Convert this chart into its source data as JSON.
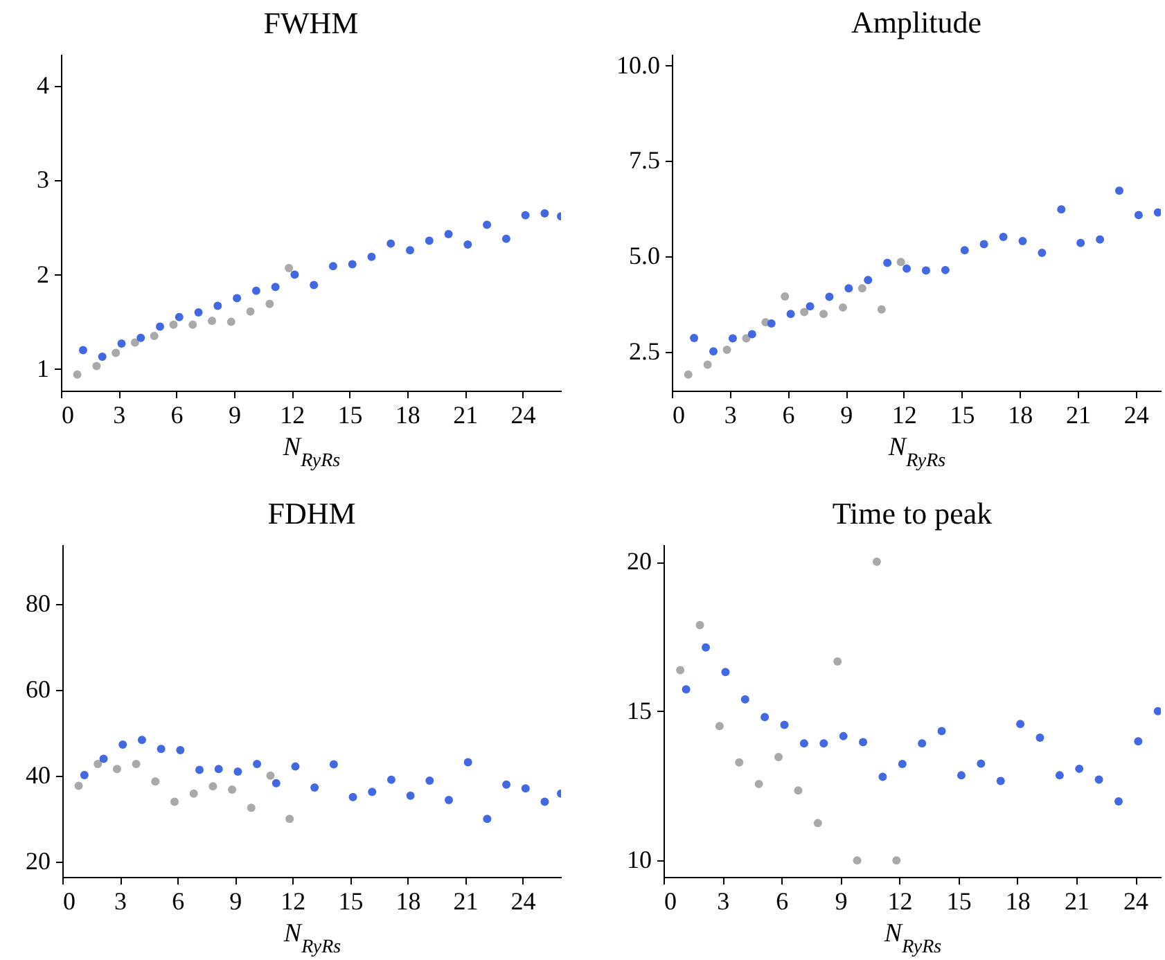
{
  "chart_data": [
    {
      "type": "scatter",
      "title": "FWHM",
      "xlabel": "N$_{RyRs}$",
      "marker": "circle",
      "xlim": [
        0,
        26
      ],
      "xticks": [
        0,
        3,
        6,
        9,
        12,
        15,
        18,
        21,
        24
      ],
      "ylim": [
        0.77,
        4.34
      ],
      "yticks": [
        1,
        2,
        3,
        4
      ],
      "series": [
        {
          "color": "#a9a9a9",
          "x": [
            0.85,
            1.85,
            2.85,
            3.85,
            4.85,
            5.85,
            6.85,
            7.85,
            8.85,
            9.85,
            10.85,
            11.85
          ],
          "values": [
            0.94,
            1.03,
            1.17,
            1.28,
            1.35,
            1.47,
            1.47,
            1.51,
            1.5,
            1.61,
            1.69,
            2.07
          ]
        },
        {
          "color": "#4169e1",
          "x": [
            1.15,
            2.15,
            3.15,
            4.15,
            5.15,
            6.15,
            7.15,
            8.15,
            9.15,
            10.15,
            11.15,
            12.15,
            13.15,
            14.15,
            15.15,
            16.15,
            17.15,
            18.15,
            19.15,
            20.15,
            21.15,
            22.15,
            23.15,
            24.15,
            25.15,
            26
          ],
          "values": [
            1.2,
            1.13,
            1.27,
            1.33,
            1.45,
            1.55,
            1.6,
            1.67,
            1.75,
            1.83,
            1.87,
            2.0,
            1.89,
            2.09,
            2.11,
            2.19,
            2.33,
            2.26,
            2.36,
            2.43,
            2.32,
            2.53,
            2.38,
            2.63,
            2.65,
            2.62
          ]
        }
      ]
    },
    {
      "type": "scatter",
      "title": "Amplitude",
      "xlabel": "N$_{RyRs}$",
      "marker": "circle",
      "xlim": [
        0,
        25.3
      ],
      "xticks": [
        0,
        3,
        6,
        9,
        12,
        15,
        18,
        21,
        24
      ],
      "ylim": [
        1.48,
        10.3
      ],
      "yticks": [
        2.5,
        {
          "value": 5,
          "label": "5.0"
        },
        7.5,
        {
          "value": 10,
          "label": "10.0"
        }
      ],
      "series": [
        {
          "color": "#a9a9a9",
          "x": [
            0.85,
            1.85,
            2.85,
            3.85,
            4.85,
            5.85,
            6.85,
            7.85,
            8.85,
            9.85,
            10.85,
            11.85
          ],
          "values": [
            1.9,
            2.16,
            2.55,
            2.85,
            3.27,
            3.95,
            3.54,
            3.49,
            3.66,
            4.16,
            3.61,
            4.85
          ]
        },
        {
          "color": "#4169e1",
          "x": [
            1.15,
            2.15,
            3.15,
            4.15,
            5.15,
            6.15,
            7.15,
            8.15,
            9.15,
            10.15,
            11.15,
            12.15,
            13.15,
            14.15,
            15.15,
            16.15,
            17.15,
            18.15,
            19.15,
            20.15,
            21.15,
            22.15,
            23.15,
            24.15,
            25.15
          ],
          "values": [
            2.86,
            2.51,
            2.85,
            2.96,
            3.24,
            3.49,
            3.69,
            3.94,
            4.16,
            4.38,
            4.83,
            4.68,
            4.63,
            4.64,
            5.16,
            5.32,
            5.51,
            5.4,
            5.09,
            6.23,
            5.35,
            5.44,
            6.72,
            6.08,
            6.15
          ]
        }
      ]
    },
    {
      "type": "scatter",
      "title": "FDHM",
      "xlabel": "N$_{RyRs}$",
      "marker": "circle",
      "xlim": [
        0,
        26
      ],
      "xticks": [
        0,
        3,
        6,
        9,
        12,
        15,
        18,
        21,
        24
      ],
      "ylim": [
        16.4,
        93.8
      ],
      "yticks": [
        20,
        40,
        60,
        80
      ],
      "series": [
        {
          "color": "#a9a9a9",
          "x": [
            0.85,
            1.85,
            2.85,
            3.85,
            4.85,
            5.85,
            6.85,
            7.85,
            8.85,
            9.85,
            10.85,
            11.85
          ],
          "values": [
            37.6,
            42.7,
            41.5,
            42.7,
            38.6,
            33.9,
            35.8,
            37.5,
            36.7,
            32.5,
            40.0,
            29.9
          ]
        },
        {
          "color": "#4169e1",
          "x": [
            1.15,
            2.15,
            3.15,
            4.15,
            5.15,
            6.15,
            7.15,
            8.15,
            9.15,
            10.15,
            11.15,
            12.15,
            13.15,
            14.15,
            15.15,
            16.15,
            17.15,
            18.15,
            19.15,
            20.15,
            21.15,
            22.15,
            23.15,
            24.15,
            25.15,
            26
          ],
          "values": [
            40.1,
            43.9,
            47.2,
            48.3,
            46.2,
            45.9,
            41.3,
            41.5,
            40.9,
            42.7,
            38.2,
            42.1,
            37.2,
            42.6,
            35.0,
            36.2,
            39.0,
            35.3,
            38.8,
            34.3,
            43.1,
            29.9,
            37.9,
            37.0,
            33.9,
            35.8
          ]
        }
      ]
    },
    {
      "type": "scatter",
      "title": "Time to peak",
      "xlabel": "N$_{RyRs}$",
      "marker": "circle",
      "xlim": [
        0,
        25.3
      ],
      "xticks": [
        0,
        3,
        6,
        9,
        12,
        15,
        18,
        21,
        24
      ],
      "ylim": [
        9.45,
        20.58
      ],
      "yticks": [
        10,
        15,
        20
      ],
      "series": [
        {
          "color": "#a9a9a9",
          "x": [
            0.85,
            1.85,
            2.85,
            3.85,
            4.85,
            5.85,
            6.85,
            7.85,
            8.85,
            9.85,
            10.85,
            11.85
          ],
          "values": [
            16.37,
            17.88,
            14.5,
            13.28,
            12.56,
            13.46,
            12.34,
            11.25,
            16.66,
            10.0,
            20.0,
            10.0
          ]
        },
        {
          "color": "#4169e1",
          "x": [
            1.15,
            2.15,
            3.15,
            4.15,
            5.15,
            6.15,
            7.15,
            8.15,
            9.15,
            10.15,
            11.15,
            12.15,
            13.15,
            14.15,
            15.15,
            16.15,
            17.15,
            18.15,
            19.15,
            20.15,
            21.15,
            22.15,
            23.15,
            24.15,
            25.15
          ],
          "values": [
            15.73,
            17.13,
            16.31,
            15.39,
            14.8,
            14.54,
            13.92,
            13.92,
            14.16,
            13.96,
            12.8,
            13.23,
            13.92,
            14.33,
            12.85,
            13.24,
            12.66,
            14.57,
            14.11,
            12.85,
            13.07,
            12.71,
            11.98,
            13.99,
            15.0
          ]
        }
      ]
    }
  ]
}
